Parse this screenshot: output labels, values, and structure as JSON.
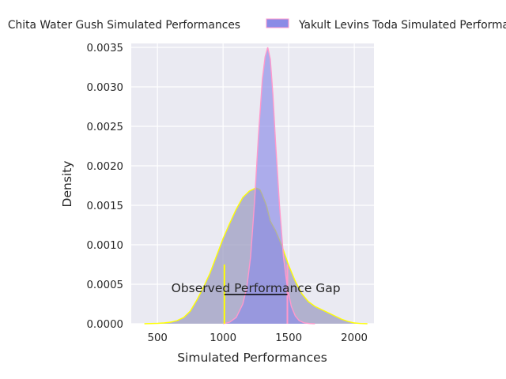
{
  "chart_data": {
    "type": "area",
    "title": "",
    "xlabel": "Simulated Performances",
    "ylabel": "Density",
    "xlim": [
      300,
      2150
    ],
    "ylim": [
      0,
      0.00355
    ],
    "xticks": [
      500,
      1000,
      1500,
      2000
    ],
    "yticks": [
      0.0,
      0.0005,
      0.001,
      0.0015,
      0.002,
      0.0025,
      0.003,
      0.0035
    ],
    "ytick_labels": [
      "0.0000",
      "0.0005",
      "0.0010",
      "0.0015",
      "0.0020",
      "0.0025",
      "0.0030",
      "0.0035"
    ],
    "grid": true,
    "legend_position": "top",
    "series": [
      {
        "name": "Chita Water Gush Simulated Performances",
        "legend_label": "Chita Water Gush Simulated Performances",
        "fill_color": "#9e9ec2",
        "line_color": "#ffff00",
        "x": [
          400,
          500,
          550,
          600,
          650,
          700,
          750,
          800,
          850,
          900,
          950,
          1000,
          1050,
          1100,
          1150,
          1200,
          1250,
          1280,
          1300,
          1330,
          1360,
          1400,
          1450,
          1500,
          1550,
          1600,
          1650,
          1700,
          1750,
          1800,
          1850,
          1900,
          1950,
          2000,
          2050,
          2100
        ],
        "y": [
          0.0,
          5e-06,
          1e-05,
          2e-05,
          4e-05,
          8e-05,
          0.00016,
          0.0003,
          0.00046,
          0.00064,
          0.00086,
          0.00108,
          0.00127,
          0.00145,
          0.0016,
          0.00168,
          0.00172,
          0.0017,
          0.00163,
          0.0015,
          0.0013,
          0.00118,
          0.00098,
          0.00074,
          0.00054,
          0.00038,
          0.00028,
          0.00022,
          0.00018,
          0.00014,
          0.0001,
          6e-05,
          3e-05,
          1e-05,
          3e-06,
          0.0
        ]
      },
      {
        "name": "Yakult Levins Toda Simulated Performances",
        "legend_label": "Yakult Levins Toda Simulated Performances",
        "fill_color": "#8b8be6",
        "line_color": "#ff99cc",
        "x": [
          1000,
          1050,
          1100,
          1150,
          1180,
          1210,
          1240,
          1270,
          1300,
          1320,
          1340,
          1360,
          1380,
          1400,
          1430,
          1460,
          1490,
          1520,
          1550,
          1580,
          1620,
          1660,
          1700
        ],
        "y": [
          0.0,
          2e-05,
          8e-05,
          0.00025,
          0.00045,
          0.00085,
          0.00155,
          0.0024,
          0.0031,
          0.00338,
          0.0035,
          0.00335,
          0.0029,
          0.0023,
          0.0015,
          0.00085,
          0.00045,
          0.00022,
          0.0001,
          4e-05,
          1e-05,
          3e-06,
          0.0
        ]
      }
    ],
    "annotation": {
      "text": "Observed Performance Gap",
      "x_start": 1010,
      "x_end": 1490,
      "y": 0.00037,
      "marker_height": 0.00075,
      "left_marker_color": "#ffff00",
      "right_marker_color": "#ff99cc",
      "line_color": "#000000"
    },
    "background_color": "#eaeaf2"
  }
}
